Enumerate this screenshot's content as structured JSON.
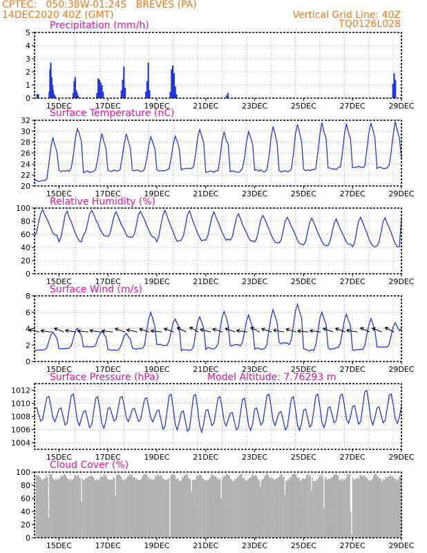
{
  "header": {
    "line1": "CPTEC:   050:38W-01:24S   BREVES (PA)",
    "line2": "14DEC2020 40Z (GMT)",
    "right1": "Vertical Grid Line: 40Z",
    "right2": "TQ0126L028"
  },
  "colors": {
    "series": "#2236e0",
    "title": "#e8139a",
    "header": "#e8791e",
    "cloud": "#b0b0b0"
  },
  "x_axis": {
    "start_day": 14,
    "end_day": 29,
    "tick_labels": [
      "15DEC",
      "17DEC",
      "19DEC",
      "21DEC",
      "23DEC",
      "25DEC",
      "27DEC",
      "29DEC"
    ]
  },
  "chart_data": [
    {
      "type": "bar",
      "title": "Precipitation (mm/h)",
      "ylim": [
        0,
        5
      ],
      "yticks": [
        "0",
        "1",
        "2",
        "3",
        "4",
        "5"
      ],
      "days": [
        14.1,
        14.15,
        14.6,
        14.63,
        14.66,
        14.7,
        14.73,
        14.76,
        14.8,
        14.83,
        15.58,
        15.62,
        15.66,
        15.7,
        15.74,
        15.78,
        16.55,
        16.6,
        16.65,
        16.7,
        16.75,
        16.8,
        17.55,
        17.6,
        17.65,
        17.7,
        18.55,
        18.6,
        18.65,
        18.7,
        19.55,
        19.6,
        19.65,
        19.7,
        19.75,
        19.8,
        21.85,
        21.9,
        28.65,
        28.7,
        28.75
      ],
      "values": [
        0.3,
        0.3,
        0.5,
        2.2,
        2.7,
        1.6,
        1.0,
        0.6,
        0.3,
        0.2,
        0.4,
        1.3,
        1.6,
        0.6,
        0.4,
        0.2,
        0.4,
        1.5,
        1.4,
        1.2,
        1.0,
        0.5,
        0.6,
        1.4,
        2.4,
        0.8,
        0.5,
        1.3,
        2.7,
        0.6,
        0.5,
        2.2,
        2.5,
        1.9,
        0.9,
        0.3,
        0.2,
        0.4,
        1.1,
        1.9,
        1.4
      ]
    },
    {
      "type": "line",
      "title": "Surface Temperature (nC)",
      "ylim": [
        20,
        32
      ],
      "yticks": [
        "20",
        "22",
        "24",
        "26",
        "28",
        "30",
        "32"
      ],
      "daily_min": [
        21.0,
        22.8,
        22.6,
        22.8,
        22.8,
        22.8,
        23.0,
        22.6,
        22.6,
        22.8,
        22.8,
        23.0,
        23.2,
        23.4,
        23.2
      ],
      "daily_max": [
        29.4,
        31.2,
        29.8,
        29.8,
        29.4,
        29.6,
        31.0,
        30.4,
        30.6,
        31.2,
        32.0,
        32.0,
        32.0,
        32.0,
        32.0
      ],
      "end_value": 25.0
    },
    {
      "type": "line",
      "title": "Relative Humidity (%)",
      "ylim": [
        0,
        100
      ],
      "yticks": [
        "0",
        "20",
        "40",
        "60",
        "80",
        "100"
      ],
      "daily_min": [
        58,
        50,
        58,
        56,
        56,
        50,
        50,
        52,
        50,
        48,
        46,
        44,
        44,
        42,
        42
      ],
      "daily_max": [
        100,
        98,
        100,
        96,
        98,
        100,
        98,
        96,
        94,
        92,
        90,
        88,
        86,
        88,
        88
      ],
      "end_value": 86
    },
    {
      "type": "line",
      "title": "Surface Wind (m/s)",
      "ylim": [
        0,
        8
      ],
      "yticks": [
        "0",
        "2",
        "4",
        "6",
        "8"
      ],
      "wind_vectors": "shown",
      "daily_min": [
        1.4,
        1.6,
        1.8,
        1.4,
        1.6,
        2.0,
        1.4,
        1.6,
        2.0,
        1.6,
        2.2,
        1.4,
        1.6,
        1.4,
        1.8
      ],
      "daily_max": [
        3.8,
        4.2,
        3.8,
        3.6,
        6.2,
        5.4,
        5.8,
        6.4,
        5.8,
        6.6,
        7.2,
        6.4,
        6.0,
        5.4,
        5.0
      ],
      "end_value": 4.0
    },
    {
      "type": "line",
      "title": "Surface Pressure (hPa)",
      "annotation": "Model Altitude: 7.76293 m",
      "ylim": [
        1003,
        1013
      ],
      "yticks": [
        "1004",
        "1006",
        "1008",
        "1010",
        "1012"
      ],
      "daily_min": [
        1006.4,
        1005.6,
        1005.2,
        1006.4,
        1006.4,
        1004.8,
        1004.4,
        1005.6,
        1004.8,
        1005.6,
        1004.8,
        1005.2,
        1006.0,
        1005.6,
        1006.0
      ],
      "daily_max": [
        1011.2,
        1011.6,
        1011.2,
        1011.2,
        1011.0,
        1011.6,
        1011.6,
        1011.2,
        1011.0,
        1011.6,
        1011.2,
        1011.6,
        1011.6,
        1012.2,
        1011.6
      ],
      "end_value": 1009.6
    },
    {
      "type": "bar",
      "title": "Cloud Cover (%)",
      "ylim": [
        0,
        100
      ],
      "yticks": [
        "0",
        "20",
        "40",
        "60",
        "80",
        "100"
      ],
      "typical_value": 92,
      "low_days": [
        14.55,
        15.9,
        17.3,
        19.5,
        20.4,
        21.6,
        23.2,
        24.2,
        25.3,
        25.8,
        26.9,
        26.95
      ],
      "low_values": [
        30,
        55,
        65,
        2,
        70,
        60,
        78,
        65,
        72,
        45,
        40,
        5
      ]
    }
  ]
}
